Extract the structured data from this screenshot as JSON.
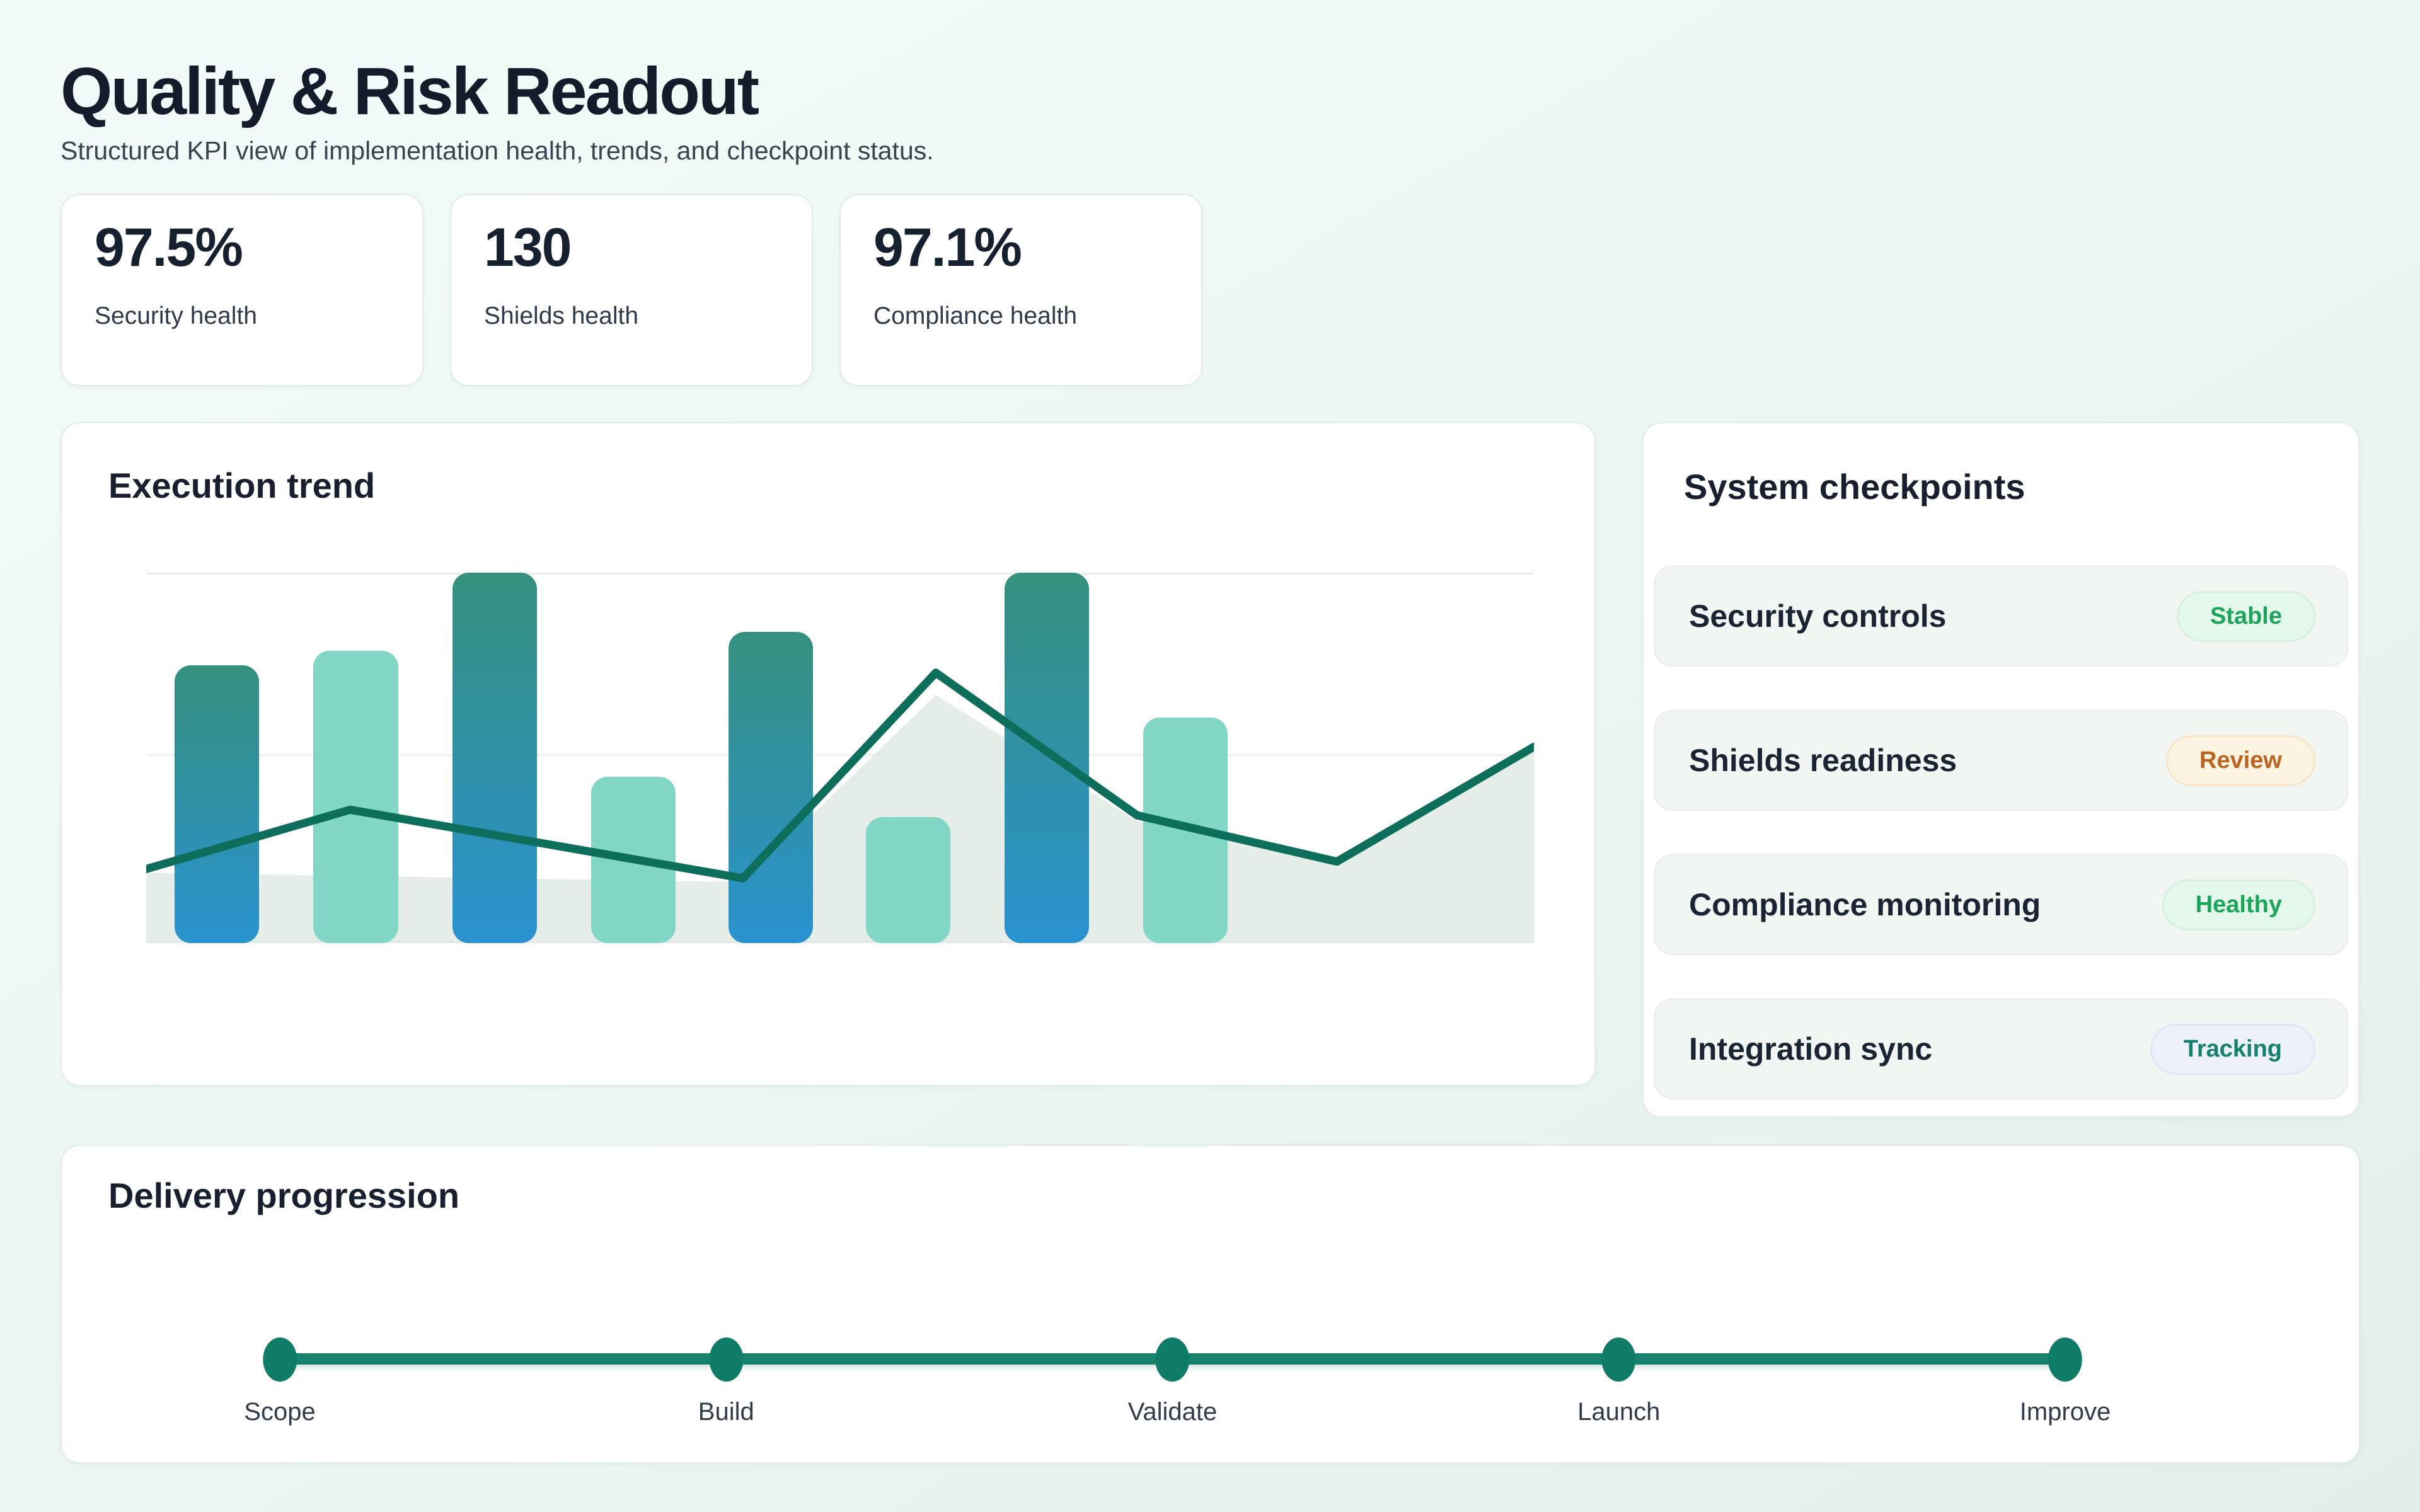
{
  "page": {
    "title": "Quality & Risk Readout",
    "subtitle": "Structured KPI view of implementation health, trends, and checkpoint status."
  },
  "kpis": [
    {
      "value": "97.5%",
      "label": "Security health"
    },
    {
      "value": "130",
      "label": "Shields health"
    },
    {
      "value": "97.1%",
      "label": "Compliance health"
    }
  ],
  "execution_trend": {
    "title": "Execution trend"
  },
  "checkpoints": {
    "title": "System checkpoints",
    "items": [
      {
        "label": "Security controls",
        "status": "Stable",
        "status_type": "green"
      },
      {
        "label": "Shields readiness",
        "status": "Review",
        "status_type": "orange"
      },
      {
        "label": "Compliance monitoring",
        "status": "Healthy",
        "status_type": "green"
      },
      {
        "label": "Integration sync",
        "status": "Tracking",
        "status_type": "blue"
      }
    ]
  },
  "delivery": {
    "title": "Delivery progression",
    "milestones": [
      "Scope",
      "Build",
      "Validate",
      "Launch",
      "Improve"
    ]
  },
  "chart_data": {
    "type": "combo",
    "title": "Execution trend",
    "ylim": [
      0,
      100
    ],
    "gridline_values": [
      51,
      100
    ],
    "axes_visible": false,
    "legend": "none",
    "bars": {
      "values": [
        75,
        79,
        100,
        45,
        84,
        34,
        100,
        61
      ],
      "centers_pct": [
        5.1,
        15.1,
        25.1,
        35.1,
        45.0,
        54.9,
        64.9,
        74.9
      ],
      "width_pct": 6.1,
      "style_pattern": [
        "teal-blue-gradient",
        "mint"
      ]
    },
    "line": {
      "points": [
        {
          "x": 0,
          "y": 20
        },
        {
          "x": 14.7,
          "y": 36
        },
        {
          "x": 43,
          "y": 17.5
        },
        {
          "x": 56.9,
          "y": 73
        },
        {
          "x": 71.4,
          "y": 34.5
        },
        {
          "x": 85.8,
          "y": 22
        },
        {
          "x": 100,
          "y": 53
        }
      ]
    },
    "area": {
      "points": [
        {
          "x": 0,
          "y": 19
        },
        {
          "x": 43,
          "y": 16.5
        },
        {
          "x": 56.9,
          "y": 67
        },
        {
          "x": 71.4,
          "y": 33
        },
        {
          "x": 85.8,
          "y": 21
        },
        {
          "x": 100,
          "y": 52
        }
      ]
    }
  },
  "colors": {
    "accent_line": "#0e6e5c",
    "bar_gradient_top": "#35907d",
    "bar_gradient_bottom": "#2a92cf",
    "bar_mint": "#82d6c5",
    "area_fill": "#dfe9e4",
    "timeline": "#16826c",
    "timeline_dot": "#0e7c66",
    "status_green_text": "#1da45b",
    "status_green_bg": "#e3f7ea",
    "status_orange_text": "#bd6322",
    "status_orange_bg": "#fdf3e1",
    "status_blue_text": "#15806c",
    "status_blue_bg": "#ebf0fa"
  }
}
